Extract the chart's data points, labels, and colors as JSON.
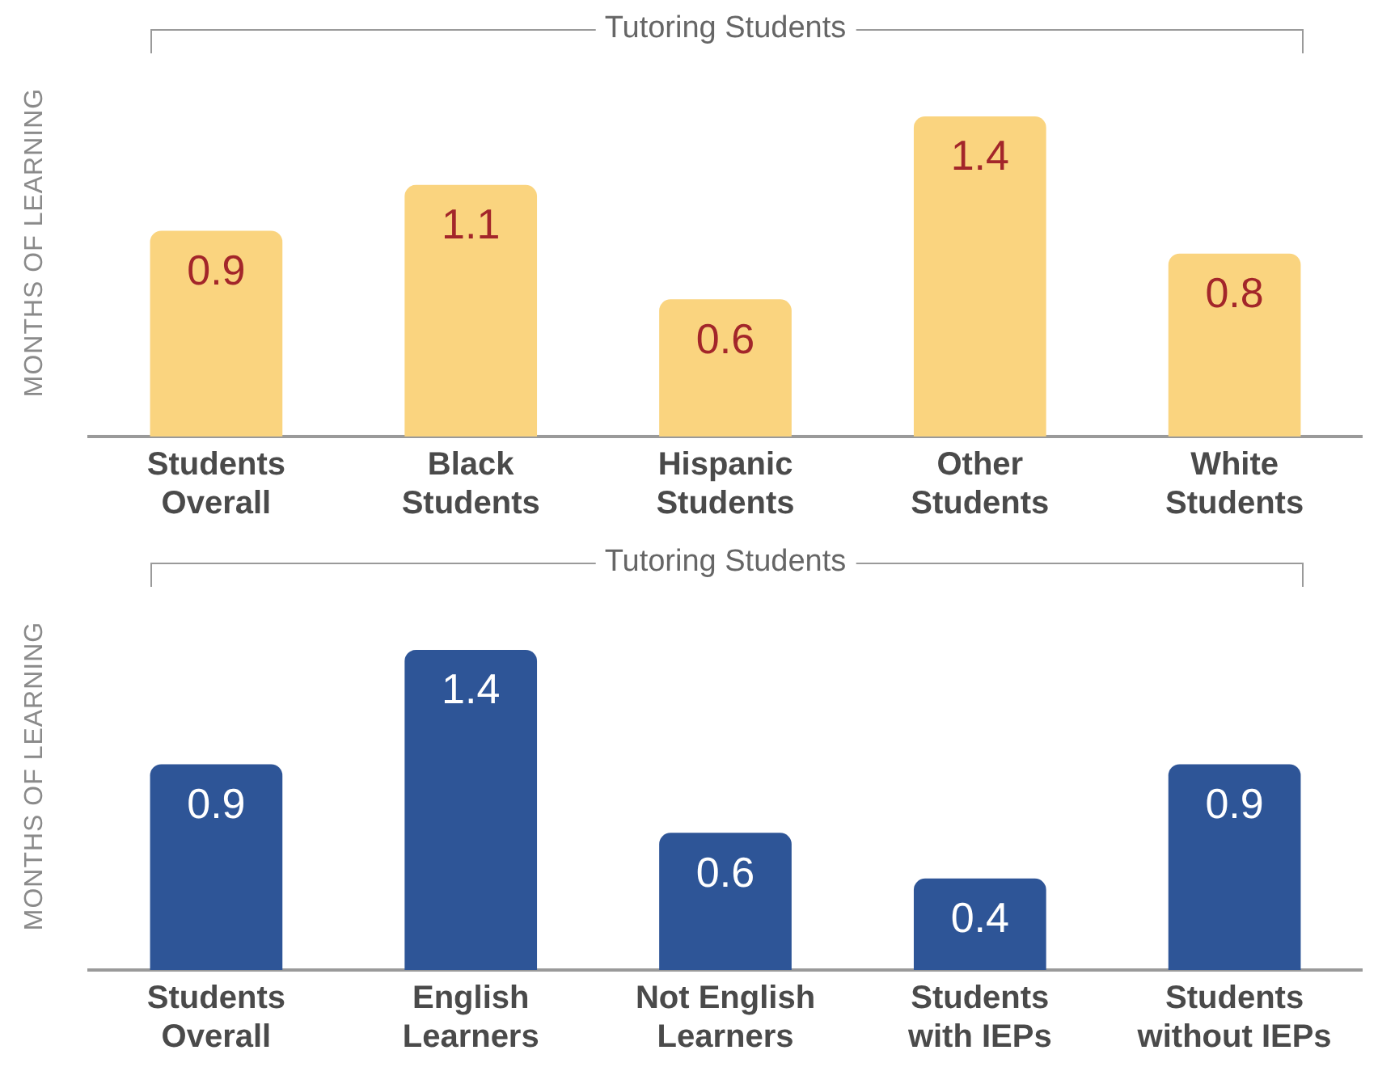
{
  "chart_data": [
    {
      "type": "bar",
      "ylabel": "MONTHS OF LEARNING",
      "annotations": [
        "Tutoring Students"
      ],
      "categories": [
        "Students Overall",
        "Black Students",
        "Hispanic Students",
        "Other Students",
        "White Students"
      ],
      "values": [
        0.9,
        1.1,
        0.6,
        1.4,
        0.8
      ],
      "color": "#fad47f",
      "data_labels": true,
      "grid": false,
      "legend": false,
      "tick_labels": "x"
    },
    {
      "type": "bar",
      "ylabel": "MONTHS OF LEARNING",
      "annotations": [
        "Tutoring Students"
      ],
      "categories": [
        "Students Overall",
        "English Learners",
        "Not English Learners",
        "Students with IEPs",
        "Students without IEPs"
      ],
      "values": [
        0.9,
        1.4,
        0.6,
        0.4,
        0.9
      ],
      "color": "#2e5597",
      "data_labels": true,
      "grid": false,
      "legend": false,
      "tick_labels": "x"
    }
  ]
}
